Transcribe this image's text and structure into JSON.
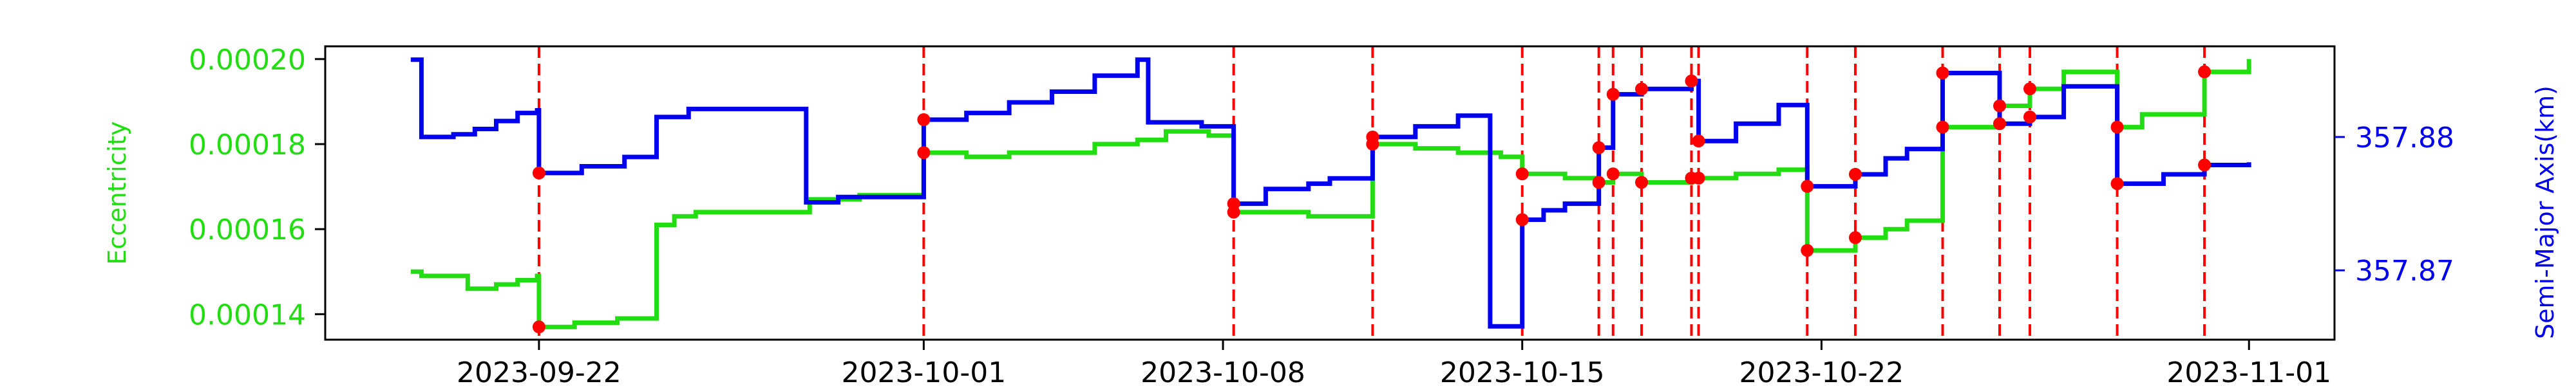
{
  "chart_data": {
    "type": "line",
    "title": "",
    "x_ticks": [
      "2023-09-22",
      "2023-10-01",
      "2023-10-08",
      "2023-10-15",
      "2023-10-22",
      "2023-11-01"
    ],
    "x_range": [
      "2023-09-17",
      "2023-11-03"
    ],
    "y_left": {
      "label": "Eccentricity",
      "range": [
        0.000134,
        0.000203
      ],
      "ticks": [
        "0.00014",
        "0.00016",
        "0.00018",
        "0.00020"
      ],
      "color": "#22dd11"
    },
    "y_right": {
      "label": "Semi-Major Axis(km)",
      "range": [
        357.8648,
        357.8868
      ],
      "ticks": [
        "357.87",
        "357.88"
      ],
      "color": "#0000ee"
    },
    "maneuver_lines": {
      "color": "#ff0000",
      "dates": [
        "2023-09-22T00:00",
        "2023-10-01T00:00",
        "2023-10-08T06:00",
        "2023-10-11T12:00",
        "2023-10-15T00:00",
        "2023-10-16T19:00",
        "2023-10-17T03:00",
        "2023-10-17T19:00",
        "2023-10-18T23:00",
        "2023-10-19T03:00",
        "2023-10-21T16:00",
        "2023-10-22T19:00",
        "2023-10-24T20:00",
        "2023-10-26T04:00",
        "2023-10-26T21:00",
        "2023-10-28T22:00",
        "2023-10-30T23:00"
      ]
    },
    "series": [
      {
        "name": "",
        "axis": "left",
        "color": "#22dd11",
        "points": [
          [
            "2023-09-19",
            0.00015
          ],
          [
            "2023-09-19T06:00",
            0.000149
          ],
          [
            "2023-09-20",
            0.000149
          ],
          [
            "2023-09-20T08:00",
            0.000146
          ],
          [
            "2023-09-21",
            0.000147
          ],
          [
            "2023-09-21T12:00",
            0.000148
          ],
          [
            "2023-09-21T23:00",
            0.000149
          ],
          [
            "2023-09-22",
            0.000137
          ],
          [
            "2023-09-22T20:00",
            0.000138
          ],
          [
            "2023-09-23T20:00",
            0.000139
          ],
          [
            "2023-09-24T18:00",
            0.000161
          ],
          [
            "2023-09-25T04:00",
            0.000163
          ],
          [
            "2023-09-25T16:00",
            0.000164
          ],
          [
            "2023-09-28",
            0.000164
          ],
          [
            "2023-09-28T08:00",
            0.000167
          ],
          [
            "2023-09-29T12:00",
            0.000168
          ],
          [
            "2023-10-01",
            0.000178
          ],
          [
            "2023-10-02",
            0.000177
          ],
          [
            "2023-10-03",
            0.000178
          ],
          [
            "2023-10-04",
            0.000178
          ],
          [
            "2023-10-05",
            0.00018
          ],
          [
            "2023-10-06",
            0.000181
          ],
          [
            "2023-10-06T16:00",
            0.000183
          ],
          [
            "2023-10-07T16:00",
            0.000182
          ],
          [
            "2023-10-08T06:00",
            0.000164
          ],
          [
            "2023-10-09",
            0.000164
          ],
          [
            "2023-10-10",
            0.000163
          ],
          [
            "2023-10-11T11:00",
            0.000163
          ],
          [
            "2023-10-11T12:00",
            0.00018
          ],
          [
            "2023-10-12T12:00",
            0.000179
          ],
          [
            "2023-10-13T12:00",
            0.000178
          ],
          [
            "2023-10-14T12:00",
            0.000177
          ],
          [
            "2023-10-15",
            0.000173
          ],
          [
            "2023-10-16",
            0.000172
          ],
          [
            "2023-10-16T19:00",
            0.000171
          ],
          [
            "2023-10-17T03:00",
            0.000173
          ],
          [
            "2023-10-17T19:00",
            0.000171
          ],
          [
            "2023-10-18T23:00",
            0.000172
          ],
          [
            "2023-10-19T03:00",
            0.000172
          ],
          [
            "2023-10-20",
            0.000173
          ],
          [
            "2023-10-21",
            0.000174
          ],
          [
            "2023-10-21T16:00",
            0.000155
          ],
          [
            "2023-10-22T19:00",
            0.000158
          ],
          [
            "2023-10-23T12:00",
            0.00016
          ],
          [
            "2023-10-24",
            0.000162
          ],
          [
            "2023-10-24T20:00",
            0.000184
          ],
          [
            "2023-10-26T04:00",
            0.000189
          ],
          [
            "2023-10-26T21:00",
            0.000193
          ],
          [
            "2023-10-27T16:00",
            0.000197
          ],
          [
            "2023-10-28T22:00",
            0.000184
          ],
          [
            "2023-10-29T12:00",
            0.000187
          ],
          [
            "2023-10-30T23:00",
            0.000197
          ],
          [
            "2023-11-01",
            0.0002
          ]
        ]
      },
      {
        "name": "",
        "axis": "right",
        "color": "#0000ee",
        "points": [
          [
            "2023-09-19",
            357.8858
          ],
          [
            "2023-09-19T06:00",
            357.88
          ],
          [
            "2023-09-20",
            357.8802
          ],
          [
            "2023-09-20T12:00",
            357.8806
          ],
          [
            "2023-09-21",
            357.8812
          ],
          [
            "2023-09-21T12:00",
            357.8818
          ],
          [
            "2023-09-21T23:00",
            357.882
          ],
          [
            "2023-09-22",
            357.8773
          ],
          [
            "2023-09-23",
            357.8778
          ],
          [
            "2023-09-24",
            357.8785
          ],
          [
            "2023-09-24T18:00",
            357.8815
          ],
          [
            "2023-09-25T12:00",
            357.8821
          ],
          [
            "2023-09-28",
            357.8821
          ],
          [
            "2023-09-28T06:00",
            357.8751
          ],
          [
            "2023-09-29",
            357.8755
          ],
          [
            "2023-10-01",
            357.8813
          ],
          [
            "2023-10-02",
            357.8818
          ],
          [
            "2023-10-03",
            357.8826
          ],
          [
            "2023-10-04",
            357.8834
          ],
          [
            "2023-10-05",
            357.8846
          ],
          [
            "2023-10-06",
            357.8858
          ],
          [
            "2023-10-06T06:00",
            357.8811
          ],
          [
            "2023-10-07T12:00",
            357.8808
          ],
          [
            "2023-10-08T06:00",
            357.875
          ],
          [
            "2023-10-09",
            357.8761
          ],
          [
            "2023-10-10",
            357.8765
          ],
          [
            "2023-10-10T12:00",
            357.8769
          ],
          [
            "2023-10-11T12:00",
            357.88
          ],
          [
            "2023-10-12T12:00",
            357.8808
          ],
          [
            "2023-10-13T12:00",
            357.8816
          ],
          [
            "2023-10-14T06:00",
            357.8658
          ],
          [
            "2023-10-15",
            357.8738
          ],
          [
            "2023-10-15T12:00",
            357.8745
          ],
          [
            "2023-10-16",
            357.875
          ],
          [
            "2023-10-16T19:00",
            357.8792
          ],
          [
            "2023-10-17T03:00",
            357.8832
          ],
          [
            "2023-10-17T19:00",
            357.8836
          ],
          [
            "2023-10-18T23:00",
            357.8842
          ],
          [
            "2023-10-19T03:00",
            357.8797
          ],
          [
            "2023-10-20",
            357.881
          ],
          [
            "2023-10-21",
            357.8824
          ],
          [
            "2023-10-21T16:00",
            357.8763
          ],
          [
            "2023-10-22T19:00",
            357.8772
          ],
          [
            "2023-10-23T12:00",
            357.8784
          ],
          [
            "2023-10-24",
            357.8791
          ],
          [
            "2023-10-24T20:00",
            357.8848
          ],
          [
            "2023-10-26T04:00",
            357.881
          ],
          [
            "2023-10-26T21:00",
            357.8815
          ],
          [
            "2023-10-27T16:00",
            357.8838
          ],
          [
            "2023-10-28T22:00",
            357.8765
          ],
          [
            "2023-10-30",
            357.8772
          ],
          [
            "2023-10-30T23:00",
            357.8779
          ],
          [
            "2023-11-01",
            357.8781
          ]
        ]
      }
    ]
  }
}
